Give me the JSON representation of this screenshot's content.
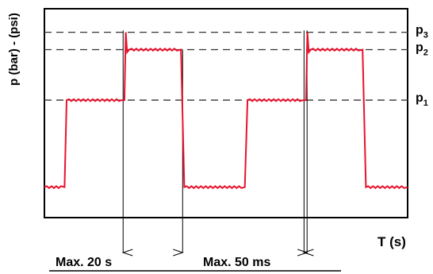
{
  "chart_data": {
    "type": "line",
    "ylabel": "p (bar) - (psi)",
    "xlabel": "T (s)",
    "yticks": [
      {
        "label": "p",
        "sub": "3"
      },
      {
        "label": "p",
        "sub": "2"
      },
      {
        "label": "p",
        "sub": "1"
      }
    ],
    "annotations": [
      "Max. 20 s",
      "Max. 50 ms"
    ],
    "grid": false,
    "series": [
      {
        "color": "#e8122d",
        "points": [
          [
            0.0,
            0.0
          ],
          [
            3.0,
            0.0
          ],
          [
            3.3,
            1.0
          ],
          [
            11.5,
            1.0
          ],
          [
            11.9,
            1.0
          ],
          [
            12.1,
            1.78
          ],
          [
            12.3,
            1.55
          ],
          [
            12.6,
            1.58
          ],
          [
            20.3,
            1.58
          ],
          [
            20.8,
            0.0
          ],
          [
            29.8,
            0.0
          ],
          [
            30.2,
            1.0
          ],
          [
            38.5,
            1.0
          ],
          [
            38.9,
            1.0
          ],
          [
            39.1,
            1.78
          ],
          [
            39.3,
            1.55
          ],
          [
            39.6,
            1.58
          ],
          [
            47.3,
            1.58
          ],
          [
            47.8,
            0.0
          ],
          [
            54.0,
            0.0
          ]
        ]
      }
    ],
    "reference_lines": [
      1.0,
      1.58,
      1.78
    ],
    "xlim": [
      0,
      54
    ],
    "ylim": [
      -0.35,
      2.05
    ]
  },
  "colors": {
    "signal": "#e8122d",
    "frame": "#000000",
    "dash": "#333333"
  }
}
